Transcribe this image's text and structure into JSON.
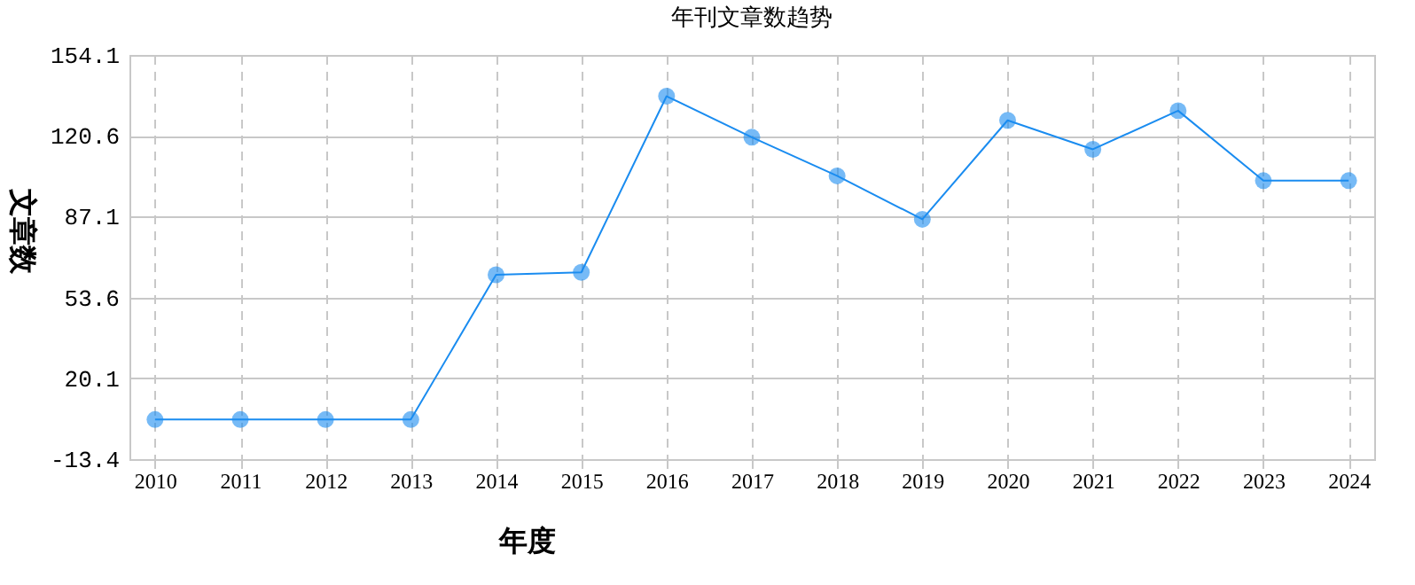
{
  "chart_data": {
    "type": "line",
    "title": "年刊文章数趋势",
    "xlabel": "年度",
    "ylabel": "文章数",
    "categories": [
      "2010",
      "2011",
      "2012",
      "2013",
      "2014",
      "2015",
      "2016",
      "2017",
      "2018",
      "2019",
      "2020",
      "2021",
      "2022",
      "2023",
      "2024"
    ],
    "series": [
      {
        "color": "#1a8cf0",
        "values": [
          3,
          3,
          3,
          3,
          63,
          64,
          137,
          120,
          104,
          86,
          127,
          115,
          131,
          102,
          102
        ]
      }
    ],
    "ylim": [
      -13.4,
      154.1
    ],
    "yticks": [
      -13.4,
      20.1,
      53.6,
      87.1,
      120.6,
      154.1
    ],
    "grid": true,
    "marker": "circle",
    "line_style": "solid"
  }
}
